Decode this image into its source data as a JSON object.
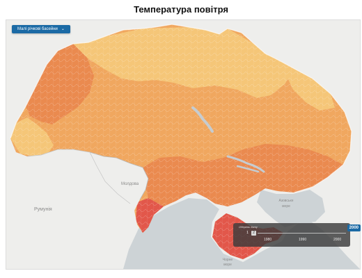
{
  "title": "Температура  повітря",
  "controls": {
    "basin_select_label": "Малі річкові басейни",
    "basin_select_icon": "chevron-down-icon"
  },
  "labels": {
    "romania": "Румунія",
    "moldova": "Молдова",
    "azov_sea": "Азовське море",
    "black_sea": "Чорне море"
  },
  "timeline": {
    "title": "Оберіть дату",
    "mode_buttons": [
      "1",
      "2"
    ],
    "years": [
      "1980",
      "1990",
      "2000"
    ],
    "current_year": "2000"
  },
  "colors": {
    "background": "#f2f2f0",
    "sea": "#cdd3d6",
    "neighbor_land": "#eeeeec",
    "cool": "#f5c678",
    "moderate": "#f0a75f",
    "warm": "#ea8a4f",
    "hot": "#e2574a",
    "accent": "#1b6aa5"
  }
}
